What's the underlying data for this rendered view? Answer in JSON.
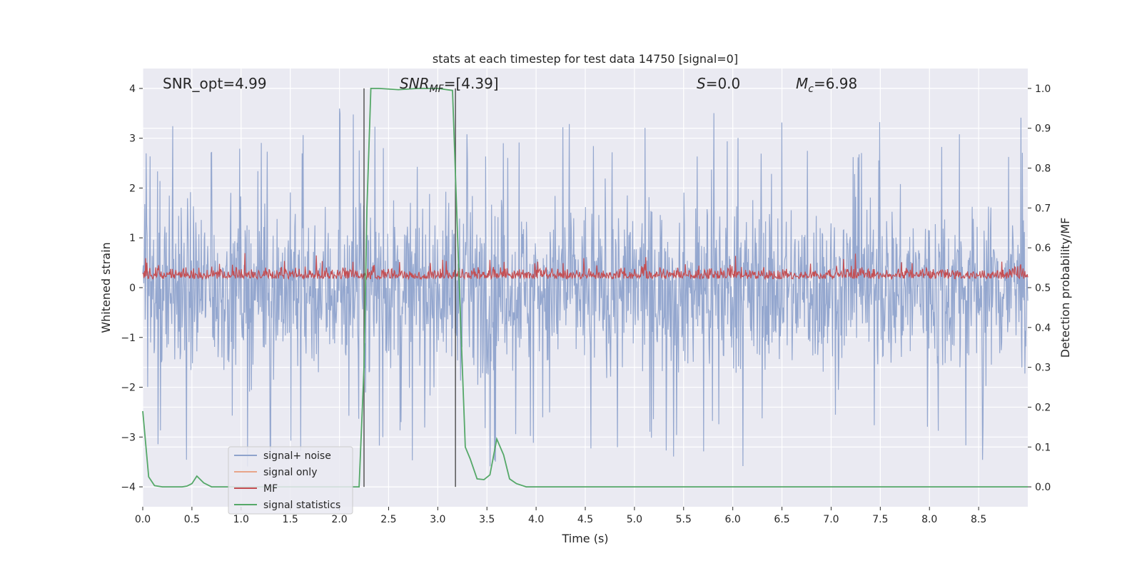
{
  "chart_data": {
    "type": "line",
    "title": "stats at each timestep for test data 14750 [signal=0]",
    "xlabel": "Time (s)",
    "ylabel": "Whitened strain",
    "y2label": "Detection probability/MF",
    "xlim": [
      0.0,
      9.0
    ],
    "ylim": [
      -4.4,
      4.4
    ],
    "y2lim": [
      -0.05,
      1.05
    ],
    "xticks": [
      "0.0",
      "0.5",
      "1.0",
      "1.5",
      "2.0",
      "2.5",
      "3.0",
      "3.5",
      "4.0",
      "4.5",
      "5.0",
      "5.5",
      "6.0",
      "6.5",
      "7.0",
      "7.5",
      "8.0",
      "8.5"
    ],
    "yticks": [
      "−4",
      "−3",
      "−2",
      "−1",
      "0",
      "1",
      "2",
      "3",
      "4"
    ],
    "y2ticks": [
      "0.0",
      "0.1",
      "0.2",
      "0.3",
      "0.4",
      "0.5",
      "0.6",
      "0.7",
      "0.8",
      "0.9",
      "1.0"
    ],
    "grid": true,
    "legend_position": "lower-left",
    "annotations": {
      "snr_opt": "SNR_opt=4.99",
      "snr_mf_main": "SNR",
      "snr_mf_sub": "MF",
      "snr_mf_value": "=[4.39]",
      "s_main": "S",
      "s_value": "=0.0",
      "mc_main": "M",
      "mc_sub": "c",
      "mc_value": "=6.98"
    },
    "vertical_lines_x": [
      2.25,
      3.18
    ],
    "series": [
      {
        "name": "signal+ noise",
        "color": "#8fa3cc",
        "envelope_y": [
          -2.6,
          2.9
        ],
        "peak_y": 3.6
      },
      {
        "name": "signal only",
        "color": "#e8a58a",
        "y": 0.0
      },
      {
        "name": "MF",
        "color": "#c44e52",
        "band_y2": [
          0.5,
          0.6
        ]
      },
      {
        "name": "signal statistics",
        "color": "#55a868",
        "x": [
          0.0,
          0.06,
          0.12,
          0.2,
          0.3,
          0.4,
          0.45,
          0.5,
          0.55,
          0.62,
          0.7,
          0.8,
          2.0,
          2.1,
          2.2,
          2.25,
          2.28,
          2.32,
          2.4,
          2.6,
          2.8,
          3.0,
          3.15,
          3.22,
          3.28,
          3.33,
          3.4,
          3.47,
          3.53,
          3.6,
          3.67,
          3.73,
          3.8,
          3.9,
          4.0,
          9.0
        ],
        "y": [
          0.19,
          0.025,
          0.003,
          0.0,
          0.0,
          0.0,
          0.002,
          0.008,
          0.027,
          0.01,
          0.0,
          0.0,
          0.0,
          0.0,
          0.0,
          0.3,
          0.7,
          1.0,
          1.0,
          0.997,
          1.0,
          1.0,
          0.995,
          0.5,
          0.1,
          0.07,
          0.02,
          0.018,
          0.03,
          0.12,
          0.08,
          0.02,
          0.008,
          0.0,
          0.0,
          0.0
        ]
      }
    ]
  }
}
